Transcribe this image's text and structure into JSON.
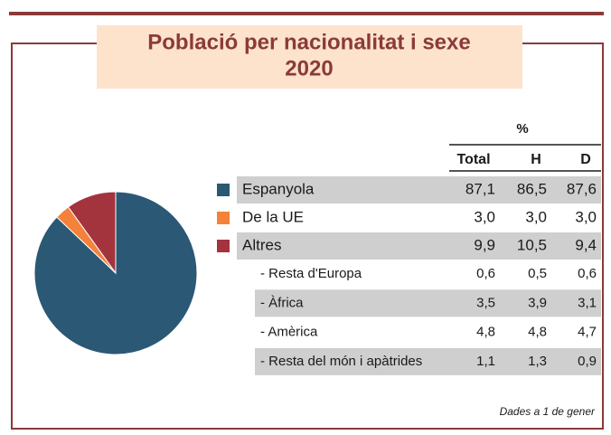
{
  "chart_data": {
    "type": "pie",
    "title": [
      "Població per nacionalitat i sexe",
      "2020"
    ],
    "categories": [
      "Espanyola",
      "De la UE",
      "Altres"
    ],
    "values": [
      87.1,
      3.0,
      9.9
    ],
    "value_labels": [
      "87,1",
      "3,0",
      "9,9"
    ],
    "colors": [
      "#2b5875",
      "#f4823a",
      "#a3333d"
    ]
  },
  "table": {
    "unit": "%",
    "columns": [
      "Total",
      "H",
      "D"
    ],
    "main_rows": [
      [
        "86,5",
        "87,6"
      ],
      [
        "3,0",
        "3,0"
      ],
      [
        "10,5",
        "9,4"
      ]
    ],
    "sub_rows": [
      [
        "- Resta d'Europa",
        "0,6",
        "0,5",
        "0,6"
      ],
      [
        "- Àfrica",
        "3,5",
        "3,9",
        "3,1"
      ],
      [
        "- Amèrica",
        "4,8",
        "4,8",
        "4,7"
      ],
      [
        "- Resta del món i apàtrides",
        "1,1",
        "1,3",
        "0,9"
      ]
    ]
  },
  "footnote": "Dades a 1 de gener"
}
